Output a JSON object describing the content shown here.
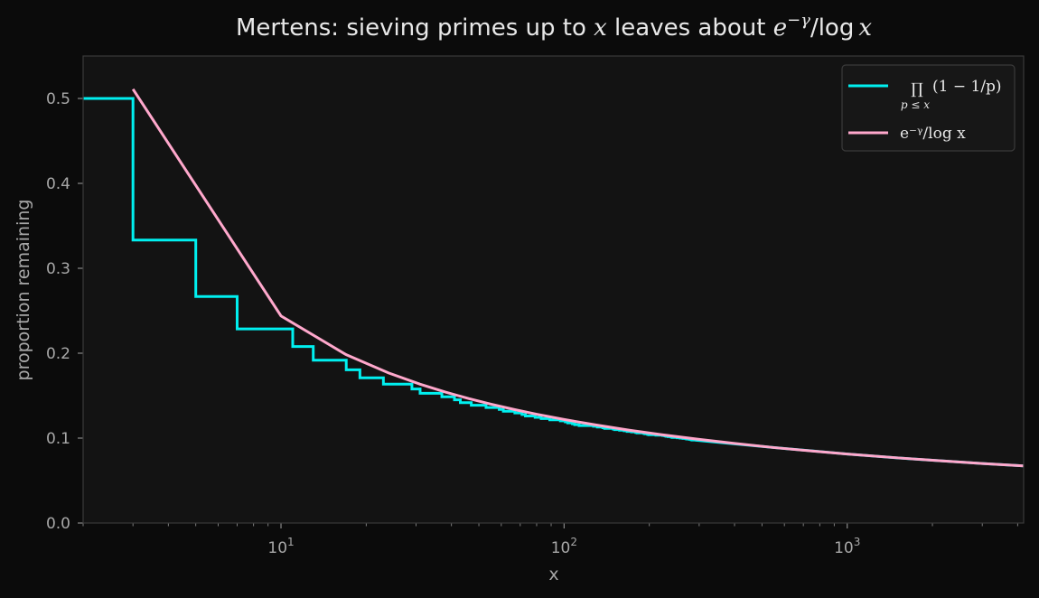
{
  "chart_data": {
    "type": "line",
    "title": {
      "text": "Mertens: sieving primes up to ",
      "var_x": "x",
      "mid": " leaves about ",
      "expr_base": "e",
      "expr_sup": "−γ",
      "expr_tail": "/log",
      "expr_var": "x"
    },
    "xlabel": "x",
    "ylabel": "proportion remaining",
    "x_scale": "log",
    "xlim": [
      2,
      4200
    ],
    "ylim": [
      0,
      0.55
    ],
    "x_ticks": [
      {
        "base": "10",
        "exp": "1",
        "value": 10
      },
      {
        "base": "10",
        "exp": "2",
        "value": 100
      },
      {
        "base": "10",
        "exp": "3",
        "value": 1000
      }
    ],
    "y_ticks": [
      {
        "label": "0.0",
        "value": 0.0
      },
      {
        "label": "0.1",
        "value": 0.1
      },
      {
        "label": "0.2",
        "value": 0.2
      },
      {
        "label": "0.3",
        "value": 0.3
      },
      {
        "label": "0.4",
        "value": 0.4
      },
      {
        "label": "0.5",
        "value": 0.5
      }
    ],
    "grid": false,
    "legend_position": "top-right",
    "legend": [
      {
        "series": "product",
        "prefix": "∏",
        "subscript": "p ≤ x",
        "text": "(1 − 1/p)",
        "color": "#00f0f0"
      },
      {
        "series": "mertens",
        "prefix": "",
        "subscript": "",
        "text": "e⁻ᵞ/log x",
        "color": "#ffa8cc"
      }
    ],
    "series": [
      {
        "name": "product",
        "color": "#00f0f0",
        "drawstyle": "steps-post",
        "x": [
          2,
          3,
          5,
          7,
          11,
          13,
          17,
          19,
          23,
          29,
          31,
          37,
          41,
          43,
          47,
          53,
          59,
          61,
          67,
          71,
          73,
          79,
          83,
          89,
          97,
          101,
          103,
          107,
          109,
          113,
          127,
          131,
          137,
          139,
          149,
          151,
          157,
          163,
          167,
          173,
          179,
          181,
          191,
          193,
          197,
          199,
          211,
          223,
          227,
          229,
          233,
          239,
          241,
          251,
          257,
          263,
          269,
          271,
          277,
          281,
          283,
          293
        ],
        "y": [
          0.5,
          0.3333,
          0.2667,
          0.2286,
          0.2078,
          0.1918,
          0.1805,
          0.171,
          0.1636,
          0.1579,
          0.1528,
          0.1487,
          0.1451,
          0.1417,
          0.1387,
          0.1361,
          0.1338,
          0.1316,
          0.1296,
          0.1278,
          0.1261,
          0.1245,
          0.123,
          0.1216,
          0.1203,
          0.1191,
          0.118,
          0.1169,
          0.1158,
          0.1148,
          0.1139,
          0.113,
          0.1122,
          0.1114,
          0.1107,
          0.11,
          0.1093,
          0.1086,
          0.1079,
          0.1073,
          0.1067,
          0.1061,
          0.1056,
          0.1051,
          0.1045,
          0.104,
          0.1035,
          0.103,
          0.1026,
          0.1021,
          0.1017,
          0.1012,
          0.1008,
          0.1004,
          0.1,
          0.0996,
          0.0993,
          0.0989,
          0.0985,
          0.0982,
          0.0978,
          0.0975
        ],
        "tail_x": [
          293,
          400,
          600,
          1000,
          1500,
          2000,
          3000,
          4200
        ],
        "tail_y": [
          0.0975,
          0.0932,
          0.0878,
          0.0813,
          0.0767,
          0.0739,
          0.0701,
          0.0673
        ]
      },
      {
        "name": "mertens",
        "color": "#ffa8cc",
        "x": [
          3,
          10,
          17,
          24,
          31,
          38,
          46,
          55,
          67,
          80,
          100,
          130,
          170,
          220,
          300,
          400,
          550,
          750,
          1000,
          1500,
          2000,
          3000,
          4200
        ],
        "y": [
          0.511,
          0.2439,
          0.1982,
          0.1767,
          0.1635,
          0.1543,
          0.1466,
          0.1401,
          0.1335,
          0.1281,
          0.1219,
          0.1154,
          0.1093,
          0.1041,
          0.0985,
          0.0937,
          0.0889,
          0.0848,
          0.0813,
          0.0768,
          0.0739,
          0.0701,
          0.0673
        ]
      }
    ]
  }
}
